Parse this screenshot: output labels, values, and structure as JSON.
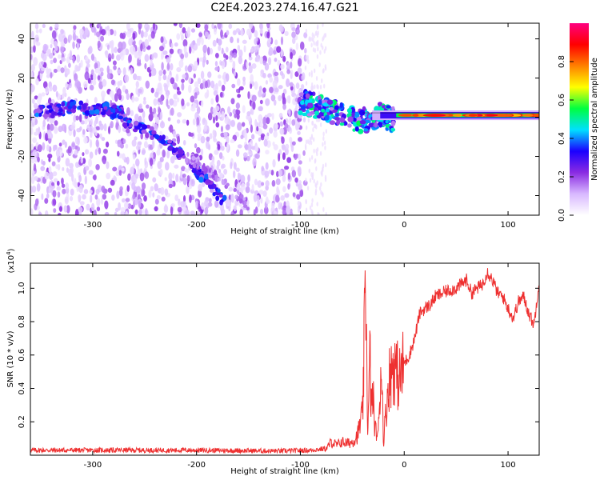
{
  "title": "C2E4.2023.274.16.47.G21",
  "chart_data": [
    {
      "type": "heatmap",
      "xlabel": "Height of straight line (km)",
      "ylabel": "Frequency (Hz)",
      "xlim": [
        -360,
        130
      ],
      "ylim": [
        -50,
        48
      ],
      "xticks": [
        -300,
        -200,
        -100,
        0,
        100
      ],
      "yticks": [
        -40,
        -20,
        0,
        20,
        40
      ],
      "colorbar": {
        "label": "Normalized spectral amplitude",
        "range": [
          0,
          1
        ],
        "ticks": [
          0.0,
          0.2,
          0.4,
          0.6,
          0.8
        ],
        "colormap": [
          "#ffffff",
          "#d8b8ff",
          "#8a2be2",
          "#1a00ff",
          "#00e0ff",
          "#00ff40",
          "#ffff00",
          "#ff8000",
          "#ff0000",
          "#ff0080"
        ]
      },
      "features": {
        "noise_region_x": [
          -360,
          -95
        ],
        "upper_branch": [
          [
            -355,
            2
          ],
          [
            -320,
            5
          ],
          [
            -290,
            4
          ],
          [
            -270,
            2
          ]
        ],
        "falling_branch": [
          [
            -270,
            -2
          ],
          [
            -250,
            -6
          ],
          [
            -225,
            -14
          ],
          [
            -205,
            -24
          ],
          [
            -190,
            -33
          ],
          [
            -170,
            -45
          ]
        ],
        "low_faint_branch": [
          [
            -210,
            -20
          ],
          [
            -190,
            -27
          ],
          [
            -170,
            -35
          ],
          [
            -150,
            -45
          ]
        ],
        "transition": [
          [
            -100,
            8
          ],
          [
            -85,
            6
          ],
          [
            -70,
            3
          ],
          [
            -55,
            0
          ],
          [
            -40,
            -2
          ],
          [
            -25,
            1
          ],
          [
            -10,
            -1
          ]
        ],
        "strong_line": [
          [
            0,
            0
          ],
          [
            30,
            1
          ],
          [
            60,
            1
          ],
          [
            90,
            1
          ],
          [
            130,
            1
          ]
        ]
      }
    },
    {
      "type": "line",
      "xlabel": "Height of straight line (km)",
      "ylabel": "SNR (10 * v/v)",
      "scale_label": "(x10",
      "scale_exp": "4",
      "scale_close": ")",
      "xlim": [
        -360,
        130
      ],
      "ylim": [
        0,
        1.15
      ],
      "xticks": [
        -300,
        -200,
        -100,
        0,
        100
      ],
      "yticks": [
        0.2,
        0.4,
        0.6,
        0.8,
        1.0
      ],
      "color": "#ee3030",
      "series": [
        {
          "x": [
            -360,
            -300,
            -200,
            -120,
            -90,
            -75,
            -70,
            -65,
            -60,
            -55,
            -50,
            -45,
            -40,
            -37,
            -35,
            -33,
            -32,
            -30,
            -28,
            -25,
            -22,
            -20,
            -15,
            -10,
            -5,
            0,
            5,
            10,
            15,
            20,
            25,
            30,
            40,
            50,
            60,
            65,
            70,
            75,
            80,
            85,
            90,
            95,
            100,
            105,
            110,
            115,
            120,
            125,
            130
          ],
          "y": [
            0.03,
            0.03,
            0.03,
            0.025,
            0.03,
            0.04,
            0.08,
            0.06,
            0.08,
            0.07,
            0.08,
            0.12,
            0.25,
            1.07,
            0.1,
            0.6,
            0.3,
            0.35,
            0.15,
            0.12,
            0.6,
            0.08,
            0.45,
            0.55,
            0.45,
            0.55,
            0.6,
            0.7,
            0.85,
            0.88,
            0.9,
            0.95,
            0.98,
            1.0,
            1.05,
            0.97,
            1.0,
            1.02,
            1.1,
            1.05,
            0.97,
            0.95,
            0.88,
            0.82,
            0.92,
            0.95,
            0.85,
            0.78,
            1.05
          ]
        }
      ]
    }
  ]
}
